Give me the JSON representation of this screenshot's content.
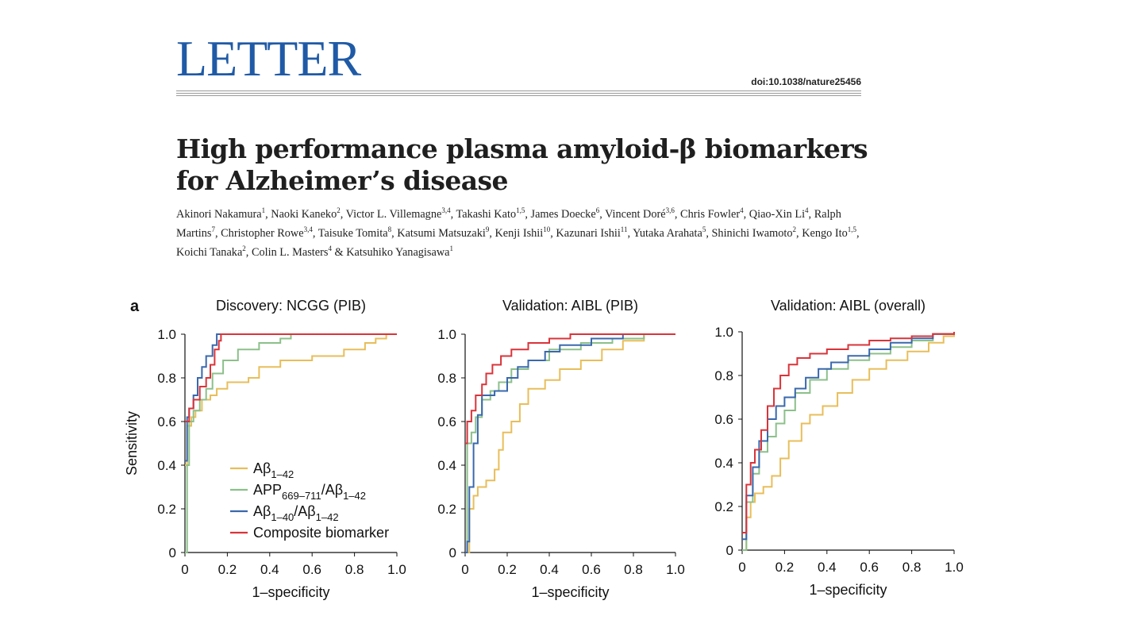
{
  "header": {
    "section": "LETTER",
    "doi": "doi:10.1038/nature25456"
  },
  "paper": {
    "title_line1": "High performance plasma amyloid-β biomarkers",
    "title_line2": "for Alzheimer’s disease",
    "authors": [
      {
        "name": "Akinori Nakamura",
        "aff": "1",
        "sep": ", "
      },
      {
        "name": "Naoki Kaneko",
        "aff": "2",
        "sep": ", "
      },
      {
        "name": "Victor L. Villemagne",
        "aff": "3,4",
        "sep": ", "
      },
      {
        "name": "Takashi Kato",
        "aff": "1,5",
        "sep": ", "
      },
      {
        "name": "James Doecke",
        "aff": "6",
        "sep": ", "
      },
      {
        "name": "Vincent Doré",
        "aff": "3,6",
        "sep": ", "
      },
      {
        "name": "Chris Fowler",
        "aff": "4",
        "sep": ", "
      },
      {
        "name": "Qiao-Xin Li",
        "aff": "4",
        "sep": ", "
      },
      {
        "name": "Ralph Martins",
        "aff": "7",
        "sep": ", "
      },
      {
        "name": "Christopher Rowe",
        "aff": "3,4",
        "sep": ", "
      },
      {
        "name": "Taisuke Tomita",
        "aff": "8",
        "sep": ", "
      },
      {
        "name": "Katsumi Matsuzaki",
        "aff": "9",
        "sep": ", "
      },
      {
        "name": "Kenji Ishii",
        "aff": "10",
        "sep": ", "
      },
      {
        "name": "Kazunari Ishii",
        "aff": "11",
        "sep": ", "
      },
      {
        "name": "Yutaka Arahata",
        "aff": "5",
        "sep": ", "
      },
      {
        "name": "Shinichi Iwamoto",
        "aff": "2",
        "sep": ", "
      },
      {
        "name": "Kengo Ito",
        "aff": "1,5",
        "sep": ", "
      },
      {
        "name": "Koichi Tanaka",
        "aff": "2",
        "sep": ", "
      },
      {
        "name": "Colin L. Masters",
        "aff": "4",
        "sep": " & "
      },
      {
        "name": "Katsuhiko Yanagisawa",
        "aff": "1",
        "sep": ""
      }
    ]
  },
  "figure": {
    "panel_label": "a"
  },
  "chart_data": [
    {
      "type": "line",
      "title": "Discovery: NCGG (PIB)",
      "xlabel": "1–specificity",
      "ylabel": "Sensitivity",
      "xlim": [
        0,
        1
      ],
      "ylim": [
        0,
        1
      ],
      "xticks": [
        "0",
        "0.2",
        "0.4",
        "0.6",
        "0.8",
        "1.0"
      ],
      "yticks": [
        "0",
        "0.2",
        "0.4",
        "0.6",
        "0.8",
        "1.0"
      ],
      "legend": {
        "placement": "bottom-left",
        "entries": [
          {
            "label": "Aβ",
            "sub": "1–42",
            "suffix": "",
            "suffix_sub": "",
            "color": "#e8be5a"
          },
          {
            "label": "APP",
            "sub": "669–711",
            "suffix": "/Aβ",
            "suffix_sub": "1–42",
            "color": "#8cc08a"
          },
          {
            "label": "Aβ",
            "sub": "1–40",
            "suffix": "/Aβ",
            "suffix_sub": "1–42",
            "color": "#3a68ad"
          },
          {
            "label": "Composite biomarker",
            "sub": "",
            "suffix": "",
            "suffix_sub": "",
            "color": "#d9343a"
          }
        ]
      },
      "series": [
        {
          "name": "Aβ1–42",
          "color": "#e8be5a",
          "points": [
            [
              0,
              0.4
            ],
            [
              0.01,
              0.58
            ],
            [
              0.03,
              0.62
            ],
            [
              0.05,
              0.65
            ],
            [
              0.08,
              0.7
            ],
            [
              0.12,
              0.72
            ],
            [
              0.15,
              0.75
            ],
            [
              0.2,
              0.78
            ],
            [
              0.3,
              0.8
            ],
            [
              0.35,
              0.85
            ],
            [
              0.45,
              0.88
            ],
            [
              0.6,
              0.9
            ],
            [
              0.75,
              0.93
            ],
            [
              0.85,
              0.96
            ],
            [
              0.9,
              0.98
            ],
            [
              0.95,
              1.0
            ],
            [
              1.0,
              1.0
            ]
          ]
        },
        {
          "name": "APP669–711/Aβ1–42",
          "color": "#8cc08a",
          "points": [
            [
              0,
              0
            ],
            [
              0.01,
              0.4
            ],
            [
              0.02,
              0.6
            ],
            [
              0.04,
              0.65
            ],
            [
              0.07,
              0.7
            ],
            [
              0.1,
              0.75
            ],
            [
              0.13,
              0.82
            ],
            [
              0.18,
              0.88
            ],
            [
              0.25,
              0.93
            ],
            [
              0.35,
              0.96
            ],
            [
              0.45,
              0.98
            ],
            [
              0.5,
              1.0
            ],
            [
              1.0,
              1.0
            ]
          ]
        },
        {
          "name": "Aβ1–40/Aβ1–42",
          "color": "#3a68ad",
          "points": [
            [
              0,
              0.42
            ],
            [
              0.01,
              0.62
            ],
            [
              0.02,
              0.66
            ],
            [
              0.04,
              0.72
            ],
            [
              0.06,
              0.8
            ],
            [
              0.08,
              0.85
            ],
            [
              0.1,
              0.9
            ],
            [
              0.13,
              0.95
            ],
            [
              0.15,
              1.0
            ],
            [
              1.0,
              1.0
            ]
          ]
        },
        {
          "name": "Composite biomarker",
          "color": "#d9343a",
          "points": [
            [
              0,
              0.6
            ],
            [
              0.02,
              0.66
            ],
            [
              0.04,
              0.7
            ],
            [
              0.07,
              0.76
            ],
            [
              0.1,
              0.8
            ],
            [
              0.12,
              0.86
            ],
            [
              0.14,
              0.93
            ],
            [
              0.16,
              0.97
            ],
            [
              0.17,
              1.0
            ],
            [
              1.0,
              1.0
            ]
          ]
        }
      ]
    },
    {
      "type": "line",
      "title": "Validation: AIBL (PIB)",
      "xlabel": "1–specificity",
      "ylabel": "",
      "xlim": [
        0,
        1
      ],
      "ylim": [
        0,
        1
      ],
      "xticks": [
        "0",
        "0.2",
        "0.4",
        "0.6",
        "0.8",
        "1.0"
      ],
      "yticks": [
        "0",
        "0.2",
        "0.4",
        "0.6",
        "0.8",
        "1.0"
      ],
      "series": [
        {
          "name": "Aβ1–42",
          "color": "#e8be5a",
          "points": [
            [
              0,
              0
            ],
            [
              0.02,
              0.2
            ],
            [
              0.04,
              0.26
            ],
            [
              0.06,
              0.3
            ],
            [
              0.1,
              0.33
            ],
            [
              0.14,
              0.38
            ],
            [
              0.16,
              0.47
            ],
            [
              0.18,
              0.55
            ],
            [
              0.22,
              0.6
            ],
            [
              0.26,
              0.68
            ],
            [
              0.3,
              0.75
            ],
            [
              0.38,
              0.79
            ],
            [
              0.45,
              0.84
            ],
            [
              0.55,
              0.88
            ],
            [
              0.65,
              0.93
            ],
            [
              0.75,
              0.97
            ],
            [
              0.85,
              1.0
            ],
            [
              1.0,
              1.0
            ]
          ]
        },
        {
          "name": "APP669–711/Aβ1–42",
          "color": "#8cc08a",
          "points": [
            [
              0,
              0
            ],
            [
              0.01,
              0.5
            ],
            [
              0.03,
              0.55
            ],
            [
              0.05,
              0.62
            ],
            [
              0.08,
              0.7
            ],
            [
              0.12,
              0.74
            ],
            [
              0.16,
              0.78
            ],
            [
              0.22,
              0.84
            ],
            [
              0.3,
              0.88
            ],
            [
              0.4,
              0.93
            ],
            [
              0.55,
              0.96
            ],
            [
              0.7,
              0.98
            ],
            [
              0.85,
              1.0
            ],
            [
              1.0,
              1.0
            ]
          ]
        },
        {
          "name": "Aβ1–40/Aβ1–42",
          "color": "#3a68ad",
          "points": [
            [
              0,
              0
            ],
            [
              0.01,
              0.05
            ],
            [
              0.02,
              0.3
            ],
            [
              0.04,
              0.5
            ],
            [
              0.06,
              0.63
            ],
            [
              0.08,
              0.72
            ],
            [
              0.14,
              0.74
            ],
            [
              0.2,
              0.8
            ],
            [
              0.25,
              0.85
            ],
            [
              0.3,
              0.88
            ],
            [
              0.38,
              0.92
            ],
            [
              0.45,
              0.95
            ],
            [
              0.6,
              0.98
            ],
            [
              0.75,
              1.0
            ],
            [
              1.0,
              1.0
            ]
          ]
        },
        {
          "name": "Composite biomarker",
          "color": "#d9343a",
          "points": [
            [
              0,
              0.5
            ],
            [
              0.01,
              0.6
            ],
            [
              0.03,
              0.65
            ],
            [
              0.05,
              0.72
            ],
            [
              0.08,
              0.77
            ],
            [
              0.1,
              0.82
            ],
            [
              0.13,
              0.86
            ],
            [
              0.17,
              0.9
            ],
            [
              0.22,
              0.93
            ],
            [
              0.3,
              0.96
            ],
            [
              0.4,
              0.98
            ],
            [
              0.5,
              1.0
            ],
            [
              1.0,
              1.0
            ]
          ]
        }
      ]
    },
    {
      "type": "line",
      "title": "Validation: AIBL (overall)",
      "xlabel": "1–specificity",
      "ylabel": "",
      "xlim": [
        0,
        1
      ],
      "ylim": [
        0,
        1
      ],
      "xticks": [
        "0",
        "0.2",
        "0.4",
        "0.6",
        "0.8",
        "1.0"
      ],
      "yticks": [
        "0",
        "0.2",
        "0.4",
        "0.6",
        "0.8",
        "1.0"
      ],
      "series": [
        {
          "name": "Aβ1–42",
          "color": "#e8be5a",
          "points": [
            [
              0,
              0
            ],
            [
              0.02,
              0.15
            ],
            [
              0.04,
              0.22
            ],
            [
              0.06,
              0.26
            ],
            [
              0.1,
              0.29
            ],
            [
              0.14,
              0.34
            ],
            [
              0.18,
              0.42
            ],
            [
              0.22,
              0.5
            ],
            [
              0.28,
              0.58
            ],
            [
              0.32,
              0.62
            ],
            [
              0.38,
              0.66
            ],
            [
              0.45,
              0.72
            ],
            [
              0.52,
              0.78
            ],
            [
              0.6,
              0.83
            ],
            [
              0.68,
              0.87
            ],
            [
              0.78,
              0.91
            ],
            [
              0.88,
              0.95
            ],
            [
              0.95,
              0.98
            ],
            [
              1.0,
              1.0
            ]
          ]
        },
        {
          "name": "APP669–711/Aβ1–42",
          "color": "#8cc08a",
          "points": [
            [
              0,
              0
            ],
            [
              0.02,
              0.22
            ],
            [
              0.05,
              0.35
            ],
            [
              0.08,
              0.45
            ],
            [
              0.12,
              0.52
            ],
            [
              0.16,
              0.58
            ],
            [
              0.2,
              0.64
            ],
            [
              0.25,
              0.72
            ],
            [
              0.32,
              0.78
            ],
            [
              0.4,
              0.83
            ],
            [
              0.5,
              0.87
            ],
            [
              0.6,
              0.9
            ],
            [
              0.7,
              0.93
            ],
            [
              0.8,
              0.96
            ],
            [
              0.9,
              0.99
            ],
            [
              1.0,
              1.0
            ]
          ]
        },
        {
          "name": "Aβ1–40/Aβ1–42",
          "color": "#3a68ad",
          "points": [
            [
              0,
              0.05
            ],
            [
              0.02,
              0.25
            ],
            [
              0.05,
              0.38
            ],
            [
              0.08,
              0.5
            ],
            [
              0.12,
              0.6
            ],
            [
              0.16,
              0.66
            ],
            [
              0.2,
              0.7
            ],
            [
              0.25,
              0.74
            ],
            [
              0.3,
              0.79
            ],
            [
              0.36,
              0.83
            ],
            [
              0.42,
              0.86
            ],
            [
              0.5,
              0.89
            ],
            [
              0.6,
              0.92
            ],
            [
              0.7,
              0.95
            ],
            [
              0.8,
              0.97
            ],
            [
              0.9,
              0.99
            ],
            [
              1.0,
              1.0
            ]
          ]
        },
        {
          "name": "Composite biomarker",
          "color": "#d9343a",
          "points": [
            [
              0,
              0.08
            ],
            [
              0.02,
              0.3
            ],
            [
              0.04,
              0.4
            ],
            [
              0.06,
              0.46
            ],
            [
              0.09,
              0.55
            ],
            [
              0.12,
              0.66
            ],
            [
              0.15,
              0.74
            ],
            [
              0.18,
              0.8
            ],
            [
              0.22,
              0.85
            ],
            [
              0.26,
              0.88
            ],
            [
              0.32,
              0.9
            ],
            [
              0.4,
              0.92
            ],
            [
              0.5,
              0.94
            ],
            [
              0.6,
              0.96
            ],
            [
              0.7,
              0.97
            ],
            [
              0.8,
              0.98
            ],
            [
              0.9,
              0.99
            ],
            [
              1.0,
              1.0
            ]
          ]
        }
      ]
    }
  ]
}
